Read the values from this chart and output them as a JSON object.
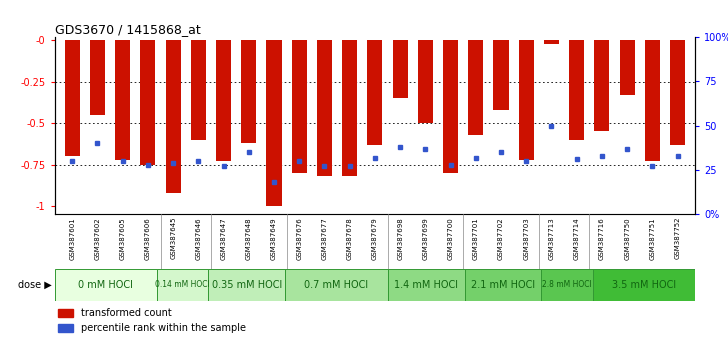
{
  "title": "GDS3670 / 1415868_at",
  "samples": [
    "GSM387601",
    "GSM387602",
    "GSM387605",
    "GSM387606",
    "GSM387645",
    "GSM387646",
    "GSM387647",
    "GSM387648",
    "GSM387649",
    "GSM387676",
    "GSM387677",
    "GSM387678",
    "GSM387679",
    "GSM387698",
    "GSM387699",
    "GSM387700",
    "GSM387701",
    "GSM387702",
    "GSM387703",
    "GSM387713",
    "GSM387714",
    "GSM387716",
    "GSM387750",
    "GSM387751",
    "GSM387752"
  ],
  "red_values": [
    -0.7,
    -0.45,
    -0.72,
    -0.75,
    -0.92,
    -0.6,
    -0.73,
    -0.62,
    -1.0,
    -0.8,
    -0.82,
    -0.82,
    -0.63,
    -0.35,
    -0.5,
    -0.8,
    -0.57,
    -0.42,
    -0.72,
    -0.02,
    -0.6,
    -0.55,
    -0.33,
    -0.73,
    -0.63
  ],
  "blue_percentiles": [
    30,
    40,
    30,
    28,
    29,
    30,
    27,
    35,
    18,
    30,
    27,
    27,
    32,
    38,
    37,
    28,
    32,
    35,
    30,
    50,
    31,
    33,
    37,
    27,
    33
  ],
  "dose_groups": [
    {
      "label": "0 mM HOCl",
      "start": 0,
      "end": 4,
      "color": "#e8ffe0"
    },
    {
      "label": "0.14 mM HOCl",
      "start": 4,
      "end": 6,
      "color": "#d4f7cc"
    },
    {
      "label": "0.35 mM HOCl",
      "start": 6,
      "end": 9,
      "color": "#c0eeb8"
    },
    {
      "label": "0.7 mM HOCl",
      "start": 9,
      "end": 13,
      "color": "#a8e49e"
    },
    {
      "label": "1.4 mM HOCl",
      "start": 13,
      "end": 16,
      "color": "#8eda84"
    },
    {
      "label": "2.1 mM HOCl",
      "start": 16,
      "end": 19,
      "color": "#74d06a"
    },
    {
      "label": "2.8 mM HOCl",
      "start": 19,
      "end": 21,
      "color": "#5ac650"
    },
    {
      "label": "3.5 mM HOCl",
      "start": 21,
      "end": 25,
      "color": "#40bc36"
    }
  ],
  "red_color": "#cc1100",
  "blue_color": "#3355cc",
  "plot_bg": "#ffffff",
  "fig_bg": "#ffffff",
  "ylim_left": [
    -1.05,
    0.02
  ],
  "ylim_right": [
    0,
    100
  ],
  "bar_width": 0.6
}
